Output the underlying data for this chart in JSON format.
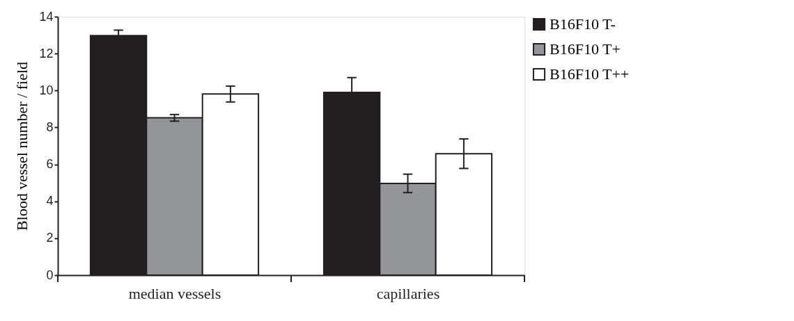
{
  "chart_data": {
    "type": "bar",
    "ylabel": "Blood vessel number / field",
    "categories": [
      "median vessels",
      "capillaries"
    ],
    "series": [
      {
        "name": "B16F10 T-",
        "color": "#231f20",
        "values": [
          12.97,
          9.9
        ],
        "errors": [
          0.3,
          0.8
        ]
      },
      {
        "name": "B16F10 T+",
        "color": "#939598",
        "values": [
          8.52,
          4.97
        ],
        "errors": [
          0.18,
          0.5
        ]
      },
      {
        "name": "B16F10 T++",
        "color": "#ffffff",
        "values": [
          9.81,
          6.58
        ],
        "errors": [
          0.43,
          0.8
        ]
      }
    ],
    "ylim": [
      0,
      14
    ],
    "yticks": [
      0,
      2,
      4,
      6,
      8,
      10,
      12,
      14
    ],
    "grid": false,
    "legend": "right"
  }
}
